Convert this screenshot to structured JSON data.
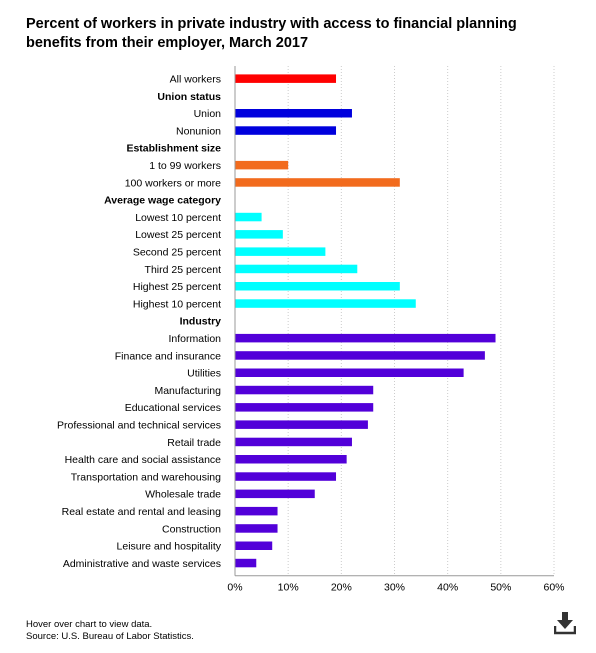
{
  "title": "Percent of workers in private industry with access to financial planning benefits from their employer, March 2017",
  "hover_note": "Hover over chart to view data.",
  "source": "Source: U.S. Bureau of Labor Statistics.",
  "download_icon": "download-icon",
  "chart_data": {
    "type": "bar",
    "orientation": "horizontal",
    "title": "Percent of workers in private industry with access to financial planning benefits from their employer, March 2017",
    "xlim": [
      0,
      60
    ],
    "xticks": [
      "0%",
      "10%",
      "20%",
      "30%",
      "40%",
      "50%",
      "60%"
    ],
    "grid": "vertical dotted",
    "rows": [
      {
        "label": "All workers",
        "value": 19,
        "color": "#ff0000"
      },
      {
        "label": "Union status",
        "header": true
      },
      {
        "label": "Union",
        "value": 22,
        "color": "#0000dd"
      },
      {
        "label": "Nonunion",
        "value": 19,
        "color": "#0000dd"
      },
      {
        "label": "Establishment size",
        "header": true
      },
      {
        "label": "1 to 99 workers",
        "value": 10,
        "color": "#f26b1d"
      },
      {
        "label": "100 workers or more",
        "value": 31,
        "color": "#f26b1d"
      },
      {
        "label": "Average wage category",
        "header": true
      },
      {
        "label": "Lowest 10 percent",
        "value": 5,
        "color": "#00ffff"
      },
      {
        "label": "Lowest 25 percent",
        "value": 9,
        "color": "#00ffff"
      },
      {
        "label": "Second 25 percent",
        "value": 17,
        "color": "#00ffff"
      },
      {
        "label": "Third 25 percent",
        "value": 23,
        "color": "#00ffff"
      },
      {
        "label": "Highest 25 percent",
        "value": 31,
        "color": "#00ffff"
      },
      {
        "label": "Highest 10 percent",
        "value": 34,
        "color": "#00ffff"
      },
      {
        "label": "Industry",
        "header": true
      },
      {
        "label": "Information",
        "value": 49,
        "color": "#5200d9"
      },
      {
        "label": "Finance and insurance",
        "value": 47,
        "color": "#5200d9"
      },
      {
        "label": "Utilities",
        "value": 43,
        "color": "#5200d9"
      },
      {
        "label": "Manufacturing",
        "value": 26,
        "color": "#5200d9"
      },
      {
        "label": "Educational services",
        "value": 26,
        "color": "#5200d9"
      },
      {
        "label": "Professional and technical services",
        "value": 25,
        "color": "#5200d9"
      },
      {
        "label": "Retail trade",
        "value": 22,
        "color": "#5200d9"
      },
      {
        "label": "Health care and social assistance",
        "value": 21,
        "color": "#5200d9"
      },
      {
        "label": "Transportation and warehousing",
        "value": 19,
        "color": "#5200d9"
      },
      {
        "label": "Wholesale trade",
        "value": 15,
        "color": "#5200d9"
      },
      {
        "label": "Real estate and rental and leasing",
        "value": 8,
        "color": "#5200d9"
      },
      {
        "label": "Construction",
        "value": 8,
        "color": "#5200d9"
      },
      {
        "label": "Leisure and hospitality",
        "value": 7,
        "color": "#5200d9"
      },
      {
        "label": "Administrative and waste services",
        "value": 4,
        "color": "#5200d9"
      }
    ]
  }
}
